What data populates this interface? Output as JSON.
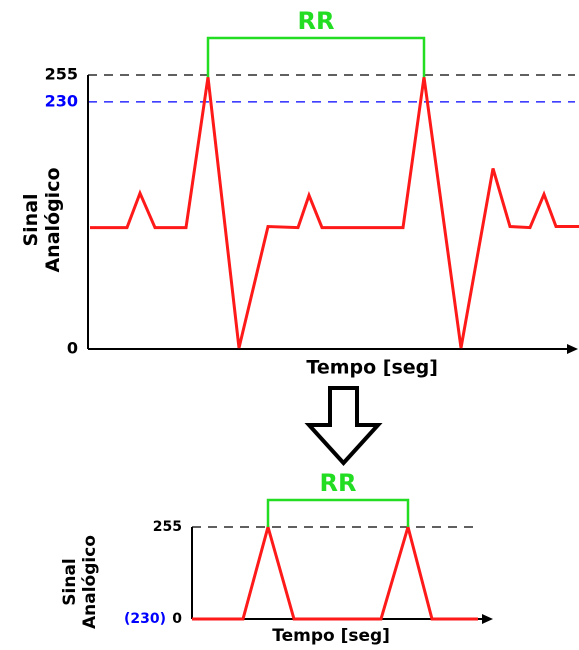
{
  "chart_data": [
    {
      "type": "line",
      "ylabel": [
        "Sinal",
        "Analógico"
      ],
      "xlabel": "Tempo [seg]",
      "annotation": "RR",
      "annotation_color": "#22dd22",
      "x": [
        2,
        39,
        52,
        67,
        98,
        120,
        151,
        180,
        210,
        221,
        234,
        315,
        336,
        373,
        405,
        422,
        442,
        456,
        468,
        491
      ],
      "series": [
        {
          "color": "#ff1a1a",
          "values": [
            113,
            113,
            145,
            113,
            113,
            253,
            1,
            114,
            113,
            143,
            113,
            113,
            253,
            1,
            168,
            114,
            113,
            144,
            114,
            114
          ]
        }
      ],
      "xlim": [
        0,
        490
      ],
      "ylim": [
        0,
        255
      ],
      "yticks": [
        0,
        230,
        255
      ],
      "ytick_colors": [
        "#000000",
        "#0000ff",
        "#000000"
      ],
      "reference_lines": [
        {
          "value": 255,
          "color": "#000000"
        },
        {
          "value": 230,
          "color": "#0000ff"
        }
      ]
    },
    {
      "type": "line",
      "ylabel": [
        "Sinal",
        "Analógico"
      ],
      "xlabel": "Tempo [seg]",
      "annotation": "RR",
      "annotation_color": "#22dd22",
      "zero_note": "(230)",
      "zero_note_color": "#0000ff",
      "x": [
        0,
        51,
        76,
        102,
        189,
        216,
        240,
        286
      ],
      "series": [
        {
          "color": "#ff1a1a",
          "values": [
            0,
            0,
            255,
            0,
            0,
            255,
            0,
            0
          ]
        }
      ],
      "xlim": [
        0,
        296
      ],
      "ylim": [
        0,
        255
      ],
      "yticks": [
        0,
        255
      ],
      "ytick_colors": [
        "#000000",
        "#000000"
      ],
      "reference_lines": [
        {
          "value": 255,
          "color": "#000000"
        }
      ]
    }
  ]
}
